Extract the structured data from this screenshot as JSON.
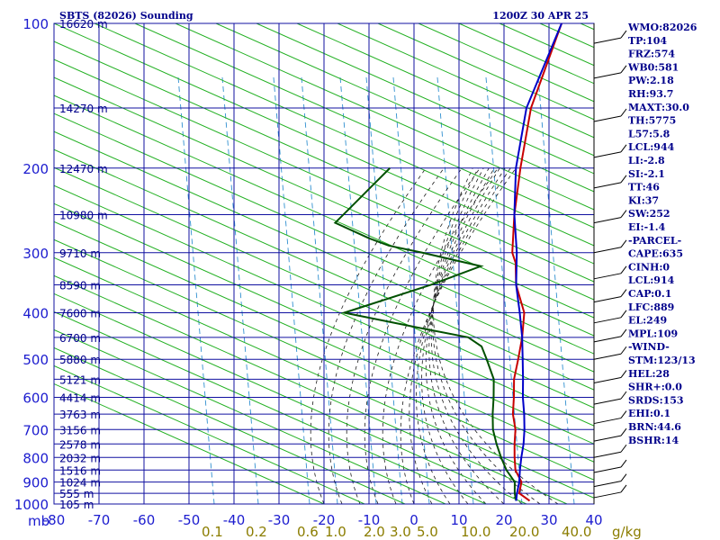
{
  "chart_data": {
    "type": "line",
    "title": "SBTS (82026) Sounding",
    "valid_time": "1200Z 30 APR 25",
    "pressure_labels": [
      "100",
      "200",
      "300",
      "400",
      "500",
      "600",
      "700",
      "800",
      "900",
      "1000"
    ],
    "pressure_axis_unit": "mb",
    "temperature_labels": [
      "-80",
      "-70",
      "-60",
      "-50",
      "-40",
      "-30",
      "-20",
      "-10",
      "0",
      "10",
      "20",
      "30",
      "40"
    ],
    "mixing_ratio_labels": [
      "0.1",
      "0.2",
      "0.6",
      "1.0",
      "2.0",
      "3.0",
      "5.0",
      "10.0",
      "20.0",
      "40.0"
    ],
    "mixing_ratio_unit": "g/kg",
    "mixing_ratio_values": [
      0.1,
      0.2,
      0.6,
      1.0,
      2.0,
      3.0,
      5.0,
      10.0,
      20.0,
      40.0
    ],
    "height_labels": [
      {
        "text": "16620 m",
        "p": 100
      },
      {
        "text": "14270 m",
        "p": 150
      },
      {
        "text": "12470 m",
        "p": 200
      },
      {
        "text": "10980 m",
        "p": 250
      },
      {
        "text": "9710 m",
        "p": 300
      },
      {
        "text": "8590 m",
        "p": 350
      },
      {
        "text": "7600 m",
        "p": 400
      },
      {
        "text": "6700 m",
        "p": 450
      },
      {
        "text": "5880 m",
        "p": 500
      },
      {
        "text": "5121 m",
        "p": 550
      },
      {
        "text": "4414 m",
        "p": 600
      },
      {
        "text": "3763 m",
        "p": 650
      },
      {
        "text": "3156 m",
        "p": 700
      },
      {
        "text": "2578 m",
        "p": 750
      },
      {
        "text": "2032 m",
        "p": 800
      },
      {
        "text": "1516 m",
        "p": 850
      },
      {
        "text": "1024 m",
        "p": 900
      },
      {
        "text": "555 m",
        "p": 950
      },
      {
        "text": "105 m",
        "p": 1000
      }
    ],
    "series": [
      {
        "name": "",
        "role": "temperature",
        "color": "#c80000",
        "points": [
          [
            985,
            25
          ],
          [
            950,
            21
          ],
          [
            900,
            19
          ],
          [
            850,
            15
          ],
          [
            800,
            12
          ],
          [
            750,
            9
          ],
          [
            700,
            6
          ],
          [
            650,
            2
          ],
          [
            600,
            -1.5
          ],
          [
            550,
            -5.5
          ],
          [
            500,
            -9
          ],
          [
            450,
            -13
          ],
          [
            400,
            -18
          ],
          [
            350,
            -26
          ],
          [
            315,
            -31
          ],
          [
            300,
            -34
          ],
          [
            250,
            -42
          ],
          [
            200,
            -51
          ],
          [
            150,
            -62
          ],
          [
            100,
            -74
          ]
        ]
      },
      {
        "name": "",
        "role": "dewpoint",
        "color": "#005000",
        "points": [
          [
            985,
            22
          ],
          [
            950,
            20
          ],
          [
            900,
            17.5
          ],
          [
            850,
            13
          ],
          [
            800,
            9
          ],
          [
            750,
            5
          ],
          [
            700,
            1
          ],
          [
            650,
            -2.5
          ],
          [
            600,
            -6
          ],
          [
            550,
            -10
          ],
          [
            500,
            -16
          ],
          [
            470,
            -20
          ],
          [
            450,
            -25
          ],
          [
            430,
            -38
          ],
          [
            400,
            -58
          ],
          [
            350,
            -45
          ],
          [
            320,
            -38
          ],
          [
            300,
            -54
          ],
          [
            290,
            -63
          ],
          [
            280,
            -69
          ],
          [
            260,
            -80
          ],
          [
            240,
            -80
          ],
          [
            230,
            -80
          ],
          [
            220,
            -80
          ],
          [
            200,
            -80
          ]
        ]
      },
      {
        "name": "",
        "role": "parcel",
        "color": "#0000c8",
        "points": [
          [
            985,
            22
          ],
          [
            950,
            20.5
          ],
          [
            900,
            18.5
          ],
          [
            850,
            16
          ],
          [
            800,
            13.5
          ],
          [
            750,
            11
          ],
          [
            700,
            8
          ],
          [
            650,
            4.5
          ],
          [
            600,
            0.5
          ],
          [
            550,
            -3.5
          ],
          [
            500,
            -8
          ],
          [
            450,
            -13
          ],
          [
            400,
            -19
          ],
          [
            350,
            -26
          ],
          [
            300,
            -33
          ],
          [
            250,
            -42
          ],
          [
            200,
            -52
          ],
          [
            150,
            -63
          ],
          [
            100,
            -74
          ]
        ]
      }
    ],
    "xlim": [
      -80,
      40
    ],
    "ylim": [
      100,
      1000
    ],
    "yscale": "log",
    "skew": true,
    "grid": true
  },
  "indices": [
    "WMO:82026",
    "TP:104",
    "FRZ:574",
    "WB0:581",
    "PW:2.18",
    "RH:93.7",
    "MAXT:30.0",
    "TH:5775",
    "L57:5.8",
    "LCL:944",
    "LI:-2.8",
    "SI:-2.1",
    "TT:46",
    "KI:37",
    "SW:252",
    "EI:-1.4",
    "-PARCEL-",
    "CAPE:635",
    "CINH:0",
    "LCL:914",
    "CAP:0.1",
    "LFC:889",
    "EL:249",
    "MPL:109",
    "-WIND-",
    "STM:123/13",
    "HEL:28",
    "SHR+:0.0",
    "SRDS:153",
    "EHI:0.1",
    "BRN:44.6",
    "BSHR:14"
  ],
  "colors": {
    "grid": "#1010a0",
    "dry_adiabat": "#22b022",
    "moist_adiabat": "#1a1a1a",
    "mixing_ratio": "#3090d0",
    "temperature": "#c80000",
    "dewpoint": "#005000",
    "parcel": "#0000c8"
  }
}
